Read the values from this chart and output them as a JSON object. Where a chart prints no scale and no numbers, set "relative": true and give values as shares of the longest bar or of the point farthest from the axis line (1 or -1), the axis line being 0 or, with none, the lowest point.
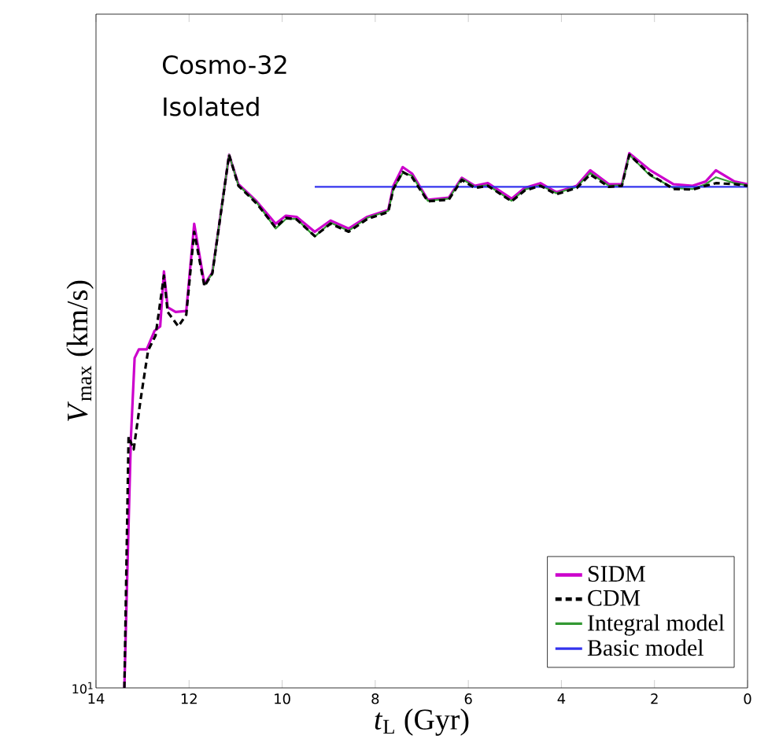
{
  "chart_data": {
    "type": "line",
    "relative": true,
    "xlabel": "*t*$_{L}$ (Gyr)",
    "ylabel": "*V*$_{max}$ (km/s)",
    "annotations": [
      "Cosmo-32",
      "Isolated",
      "10$^{1}$"
    ],
    "xlim": [
      14,
      0
    ],
    "xticks": [
      14,
      12,
      10,
      8,
      6,
      4,
      2,
      0
    ],
    "legend": "bottom right",
    "marker": "none",
    "series": [
      {
        "name": "SIDM",
        "color": "#cc00cc",
        "line_style": "solid",
        "x": [
          13.39,
          13.3,
          13.25,
          13.17,
          13.08,
          12.91,
          12.74,
          12.62,
          12.54,
          12.46,
          12.29,
          12.06,
          11.89,
          11.67,
          11.5,
          11.14,
          10.94,
          10.55,
          10.14,
          9.92,
          9.69,
          9.3,
          8.96,
          8.57,
          8.17,
          7.72,
          7.61,
          7.41,
          7.21,
          6.87,
          6.42,
          6.14,
          5.86,
          5.58,
          5.07,
          4.79,
          4.45,
          4.11,
          3.67,
          3.38,
          2.98,
          2.7,
          2.54,
          2.09,
          1.59,
          1.18,
          0.9,
          0.68,
          0.28,
          0
        ],
        "values": [
          0,
          0.304,
          0.467,
          0.617,
          0.633,
          0.633,
          0.668,
          0.676,
          0.779,
          0.712,
          0.703,
          0.705,
          0.868,
          0.755,
          0.777,
          0.997,
          0.942,
          0.91,
          0.868,
          0.883,
          0.881,
          0.853,
          0.874,
          0.859,
          0.881,
          0.894,
          0.939,
          0.974,
          0.962,
          0.913,
          0.917,
          0.954,
          0.939,
          0.944,
          0.915,
          0.935,
          0.944,
          0.927,
          0.939,
          0.968,
          0.942,
          0.942,
          1,
          0.968,
          0.942,
          0.939,
          0.947,
          0.968,
          0.947,
          0.942
        ]
      },
      {
        "name": "CDM",
        "color": "#000000",
        "line_style": "dashed",
        "x": [
          13.39,
          13.3,
          13.19,
          13.04,
          12.88,
          12.72,
          12.54,
          12.46,
          12.23,
          12.06,
          11.89,
          11.67,
          11.5,
          11.14,
          10.94,
          10.55,
          10.14,
          9.92,
          9.69,
          9.3,
          8.96,
          8.57,
          8.17,
          7.72,
          7.61,
          7.41,
          7.21,
          6.87,
          6.42,
          6.14,
          5.86,
          5.58,
          5.07,
          4.79,
          4.45,
          4.11,
          3.67,
          3.38,
          2.98,
          2.7,
          2.54,
          2.09,
          1.59,
          1.18,
          0.9,
          0.68,
          0.28,
          0
        ],
        "values": [
          0,
          0.47,
          0.446,
          0.54,
          0.631,
          0.659,
          0.771,
          0.703,
          0.676,
          0.698,
          0.853,
          0.751,
          0.775,
          0.997,
          0.939,
          0.906,
          0.861,
          0.879,
          0.876,
          0.845,
          0.868,
          0.853,
          0.877,
          0.89,
          0.933,
          0.965,
          0.955,
          0.91,
          0.913,
          0.95,
          0.935,
          0.939,
          0.91,
          0.93,
          0.939,
          0.923,
          0.935,
          0.96,
          0.937,
          0.939,
          0.997,
          0.96,
          0.933,
          0.932,
          0.939,
          0.944,
          0.942,
          0.939
        ]
      },
      {
        "name": "Integral model",
        "color": "#339933",
        "line_style": "solid",
        "x": [
          11.67,
          11.5,
          11.14,
          10.94,
          10.55,
          10.14,
          9.92,
          9.69,
          9.3,
          8.96,
          8.57,
          8.17,
          7.72,
          7.61,
          7.41,
          7.21,
          6.87,
          6.42,
          6.14,
          5.86,
          5.58,
          5.07,
          4.79,
          4.45,
          4.11,
          3.67,
          3.38,
          2.98,
          2.7,
          2.54,
          2.09,
          1.59,
          1.18,
          0.9,
          0.68,
          0.28,
          0
        ],
        "values": [
          0.753,
          0.775,
          0.997,
          0.94,
          0.908,
          0.859,
          0.877,
          0.877,
          0.844,
          0.87,
          0.855,
          0.879,
          0.892,
          0.933,
          0.963,
          0.958,
          0.911,
          0.915,
          0.952,
          0.937,
          0.94,
          0.911,
          0.932,
          0.94,
          0.925,
          0.937,
          0.963,
          0.939,
          0.94,
          0.997,
          0.958,
          0.935,
          0.933,
          0.942,
          0.955,
          0.944,
          0.94
        ]
      },
      {
        "name": "Basic model",
        "color": "#3333ee",
        "line_style": "solid",
        "x": [
          9.3,
          0
        ],
        "values": [
          0.937,
          0.937
        ]
      }
    ]
  }
}
